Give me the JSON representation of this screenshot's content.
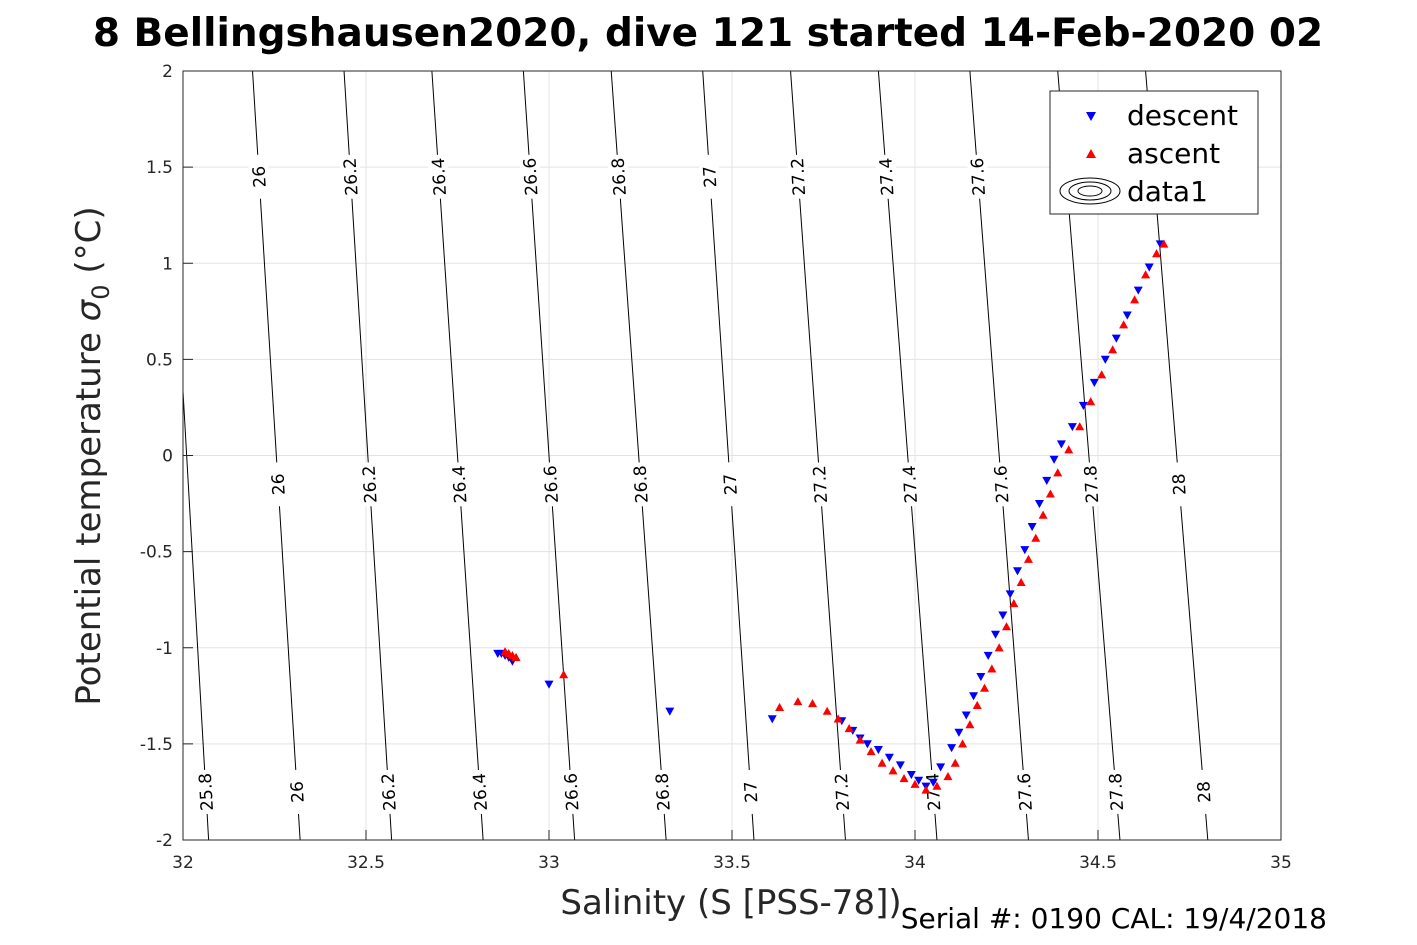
{
  "chart_data": {
    "type": "scatter",
    "title": "8 Bellingshausen2020, dive 121 started 14-Feb-2020 02",
    "xlabel": "Salinity (S [PSS-78])",
    "ylabel": "Potential temperature",
    "ylabel_symbol": "σ",
    "ylabel_subscript": "0",
    "ylabel_unit": "(°C)",
    "xlim": [
      32,
      35
    ],
    "ylim": [
      -2,
      2
    ],
    "xticks": [
      32,
      32.5,
      33,
      33.5,
      34,
      34.5,
      35
    ],
    "yticks": [
      -2,
      -1.5,
      -1,
      -0.5,
      0,
      0.5,
      1,
      1.5,
      2
    ],
    "xtick_labels": [
      "32",
      "32.5",
      "33",
      "33.5",
      "34",
      "34.5",
      "35"
    ],
    "ytick_labels": [
      "-2",
      "-1.5",
      "-1",
      "-0.5",
      "0",
      "0.5",
      "1",
      "1.5",
      "2"
    ],
    "grid": true,
    "legend_position": "top-right",
    "legend": [
      "descent",
      "ascent",
      "data1"
    ],
    "contour_levels": [
      25.8,
      26,
      26.2,
      26.4,
      26.6,
      26.8,
      27,
      27.2,
      27.4,
      27.6,
      27.8,
      28
    ],
    "contour_salinity_at_temp": [
      {
        "temp": -2,
        "salinity": [
          32.07,
          32.32,
          32.57,
          32.82,
          33.07,
          33.32,
          33.56,
          33.81,
          34.06,
          34.31,
          34.56,
          34.8
        ]
      },
      {
        "temp": 2,
        "salinity": [
          31.95,
          32.19,
          32.44,
          32.68,
          32.93,
          33.17,
          33.42,
          33.66,
          33.9,
          34.15,
          34.39,
          34.63
        ]
      }
    ],
    "contour_label_rows": [
      {
        "temp": -1.75,
        "levels": [
          25.8,
          26,
          26.2,
          26.4,
          26.6,
          26.8,
          27,
          27.2,
          27.4,
          27.6,
          27.8,
          28
        ]
      },
      {
        "temp": -0.15,
        "levels": [
          25.8,
          26,
          26.2,
          26.4,
          26.6,
          26.8,
          27,
          27.2,
          27.4,
          27.6,
          27.8,
          28
        ]
      },
      {
        "temp": 1.45,
        "levels": [
          25.8,
          26,
          26.2,
          26.4,
          26.6,
          26.8,
          27,
          27.2,
          27.4,
          27.6,
          27.8,
          28
        ]
      }
    ],
    "series": [
      {
        "name": "descent",
        "color": "#0000ff",
        "marker": "triangle-down",
        "points": [
          [
            32.86,
            -1.03
          ],
          [
            32.87,
            -1.03
          ],
          [
            32.88,
            -1.04
          ],
          [
            32.89,
            -1.05
          ],
          [
            32.9,
            -1.07
          ],
          [
            33.0,
            -1.19
          ],
          [
            33.33,
            -1.33
          ],
          [
            33.61,
            -1.37
          ],
          [
            33.8,
            -1.38
          ],
          [
            33.83,
            -1.43
          ],
          [
            33.85,
            -1.47
          ],
          [
            33.87,
            -1.5
          ],
          [
            33.9,
            -1.53
          ],
          [
            33.93,
            -1.57
          ],
          [
            33.96,
            -1.61
          ],
          [
            33.99,
            -1.66
          ],
          [
            34.01,
            -1.69
          ],
          [
            34.03,
            -1.72
          ],
          [
            34.05,
            -1.7
          ],
          [
            34.07,
            -1.62
          ],
          [
            34.1,
            -1.52
          ],
          [
            34.12,
            -1.44
          ],
          [
            34.14,
            -1.35
          ],
          [
            34.16,
            -1.25
          ],
          [
            34.18,
            -1.15
          ],
          [
            34.2,
            -1.04
          ],
          [
            34.22,
            -0.93
          ],
          [
            34.24,
            -0.83
          ],
          [
            34.26,
            -0.72
          ],
          [
            34.28,
            -0.6
          ],
          [
            34.3,
            -0.49
          ],
          [
            34.32,
            -0.37
          ],
          [
            34.34,
            -0.25
          ],
          [
            34.36,
            -0.13
          ],
          [
            34.38,
            -0.02
          ],
          [
            34.4,
            0.06
          ],
          [
            34.43,
            0.15
          ],
          [
            34.46,
            0.26
          ],
          [
            34.49,
            0.38
          ],
          [
            34.52,
            0.5
          ],
          [
            34.55,
            0.61
          ],
          [
            34.58,
            0.73
          ],
          [
            34.61,
            0.86
          ],
          [
            34.64,
            0.98
          ],
          [
            34.67,
            1.1
          ]
        ]
      },
      {
        "name": "ascent",
        "color": "#ff0000",
        "marker": "triangle-up",
        "points": [
          [
            32.88,
            -1.02
          ],
          [
            32.89,
            -1.03
          ],
          [
            32.9,
            -1.04
          ],
          [
            32.91,
            -1.05
          ],
          [
            33.04,
            -1.14
          ],
          [
            33.63,
            -1.31
          ],
          [
            33.68,
            -1.28
          ],
          [
            33.72,
            -1.29
          ],
          [
            33.76,
            -1.33
          ],
          [
            33.79,
            -1.37
          ],
          [
            33.82,
            -1.42
          ],
          [
            33.85,
            -1.48
          ],
          [
            33.88,
            -1.54
          ],
          [
            33.91,
            -1.6
          ],
          [
            33.94,
            -1.64
          ],
          [
            33.97,
            -1.68
          ],
          [
            34.0,
            -1.71
          ],
          [
            34.03,
            -1.74
          ],
          [
            34.06,
            -1.72
          ],
          [
            34.09,
            -1.67
          ],
          [
            34.11,
            -1.6
          ],
          [
            34.13,
            -1.5
          ],
          [
            34.15,
            -1.4
          ],
          [
            34.17,
            -1.3
          ],
          [
            34.19,
            -1.21
          ],
          [
            34.21,
            -1.11
          ],
          [
            34.23,
            -1.0
          ],
          [
            34.25,
            -0.89
          ],
          [
            34.27,
            -0.77
          ],
          [
            34.29,
            -0.66
          ],
          [
            34.31,
            -0.54
          ],
          [
            34.33,
            -0.43
          ],
          [
            34.35,
            -0.31
          ],
          [
            34.37,
            -0.2
          ],
          [
            34.39,
            -0.09
          ],
          [
            34.42,
            0.03
          ],
          [
            34.45,
            0.15
          ],
          [
            34.48,
            0.28
          ],
          [
            34.51,
            0.42
          ],
          [
            34.54,
            0.55
          ],
          [
            34.57,
            0.68
          ],
          [
            34.6,
            0.81
          ],
          [
            34.63,
            0.94
          ],
          [
            34.66,
            1.05
          ],
          [
            34.68,
            1.1
          ]
        ]
      }
    ]
  },
  "footer": {
    "serial": "Serial #: 0190  CAL: 19/4/2018"
  }
}
